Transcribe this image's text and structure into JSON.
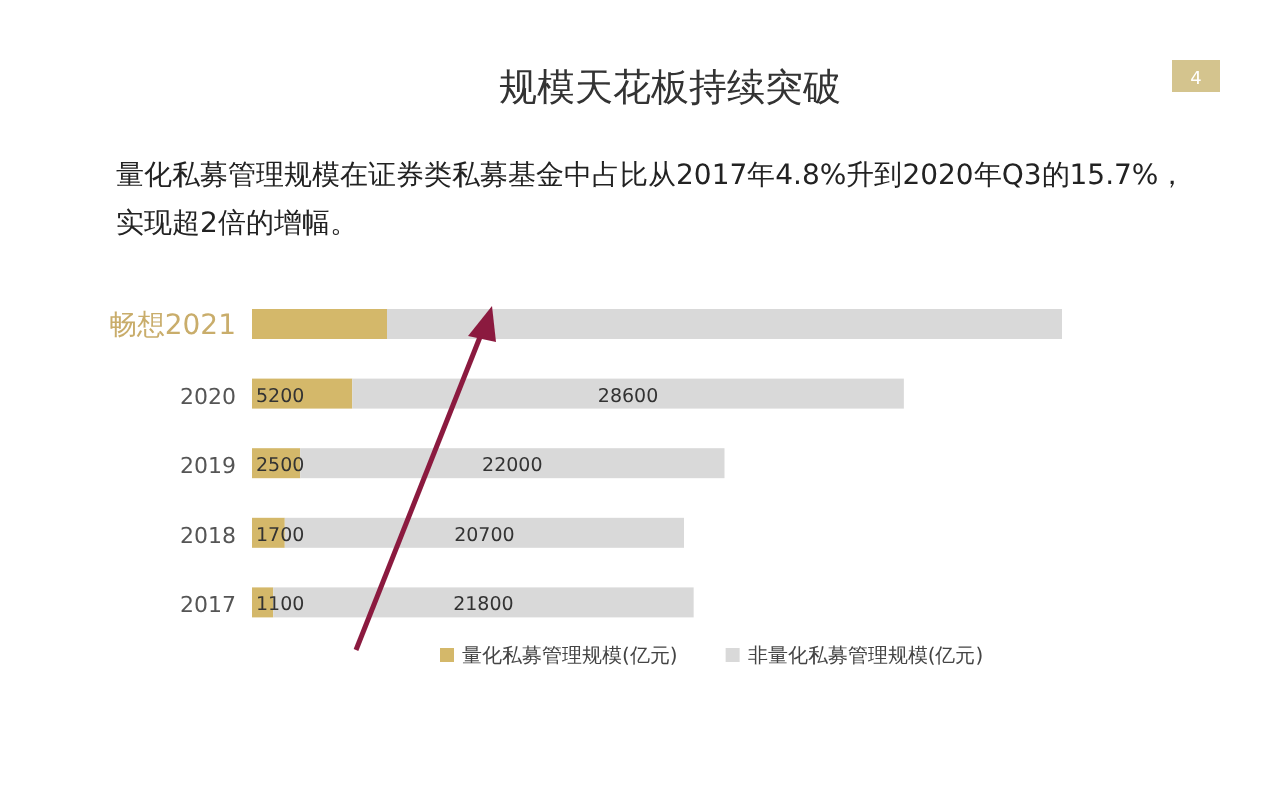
{
  "chart_data": {
    "type": "bar",
    "orientation": "horizontal",
    "stacked": true,
    "title": "规模天花板持续突破",
    "subtitle": "量化私募管理规模在证券类私募基金中占比从2017年4.8%升到2020年Q3的15.7%，实现超2倍的增幅。",
    "annotations": [
      "4"
    ],
    "categories": [
      "畅想2021",
      "2020",
      "2019",
      "2018",
      "2017"
    ],
    "series": [
      {
        "name": "量化私募管理规模(亿元)",
        "color": "#d4b86a",
        "values": [
          7000,
          5200,
          2500,
          1700,
          1100
        ],
        "value_labels": [
          null,
          "5200",
          "2500",
          "1700",
          "1100"
        ]
      },
      {
        "name": "非量化私募管理规模(亿元)",
        "color": "#d9d9d9",
        "values": [
          35000,
          28600,
          22000,
          20700,
          21800
        ],
        "value_labels": [
          null,
          "28600",
          "22000",
          "20700",
          "21800"
        ]
      }
    ],
    "legend": "bottom"
  }
}
